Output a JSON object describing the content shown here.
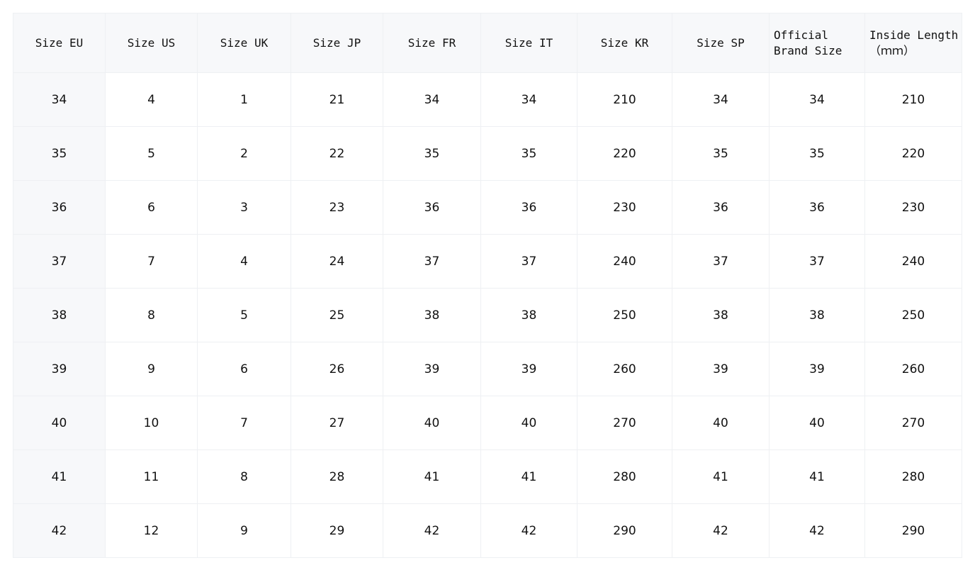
{
  "headers": [
    "Size EU",
    "Size US",
    "Size UK",
    "Size JP",
    "Size FR",
    "Size IT",
    "Size KR",
    "Size SP",
    "Official Brand Size",
    "Inside Length（ｍｍ）"
  ],
  "rows": [
    [
      "34",
      "4",
      "1",
      "21",
      "34",
      "34",
      "210",
      "34",
      "34",
      "210"
    ],
    [
      "35",
      "5",
      "2",
      "22",
      "35",
      "35",
      "220",
      "35",
      "35",
      "220"
    ],
    [
      "36",
      "6",
      "3",
      "23",
      "36",
      "36",
      "230",
      "36",
      "36",
      "230"
    ],
    [
      "37",
      "7",
      "4",
      "24",
      "37",
      "37",
      "240",
      "37",
      "37",
      "240"
    ],
    [
      "38",
      "8",
      "5",
      "25",
      "38",
      "38",
      "250",
      "38",
      "38",
      "250"
    ],
    [
      "39",
      "9",
      "6",
      "26",
      "39",
      "39",
      "260",
      "39",
      "39",
      "260"
    ],
    [
      "40",
      "10",
      "7",
      "27",
      "40",
      "40",
      "270",
      "40",
      "40",
      "270"
    ],
    [
      "41",
      "11",
      "8",
      "28",
      "41",
      "41",
      "280",
      "41",
      "41",
      "280"
    ],
    [
      "42",
      "12",
      "9",
      "29",
      "42",
      "42",
      "290",
      "42",
      "42",
      "290"
    ]
  ]
}
